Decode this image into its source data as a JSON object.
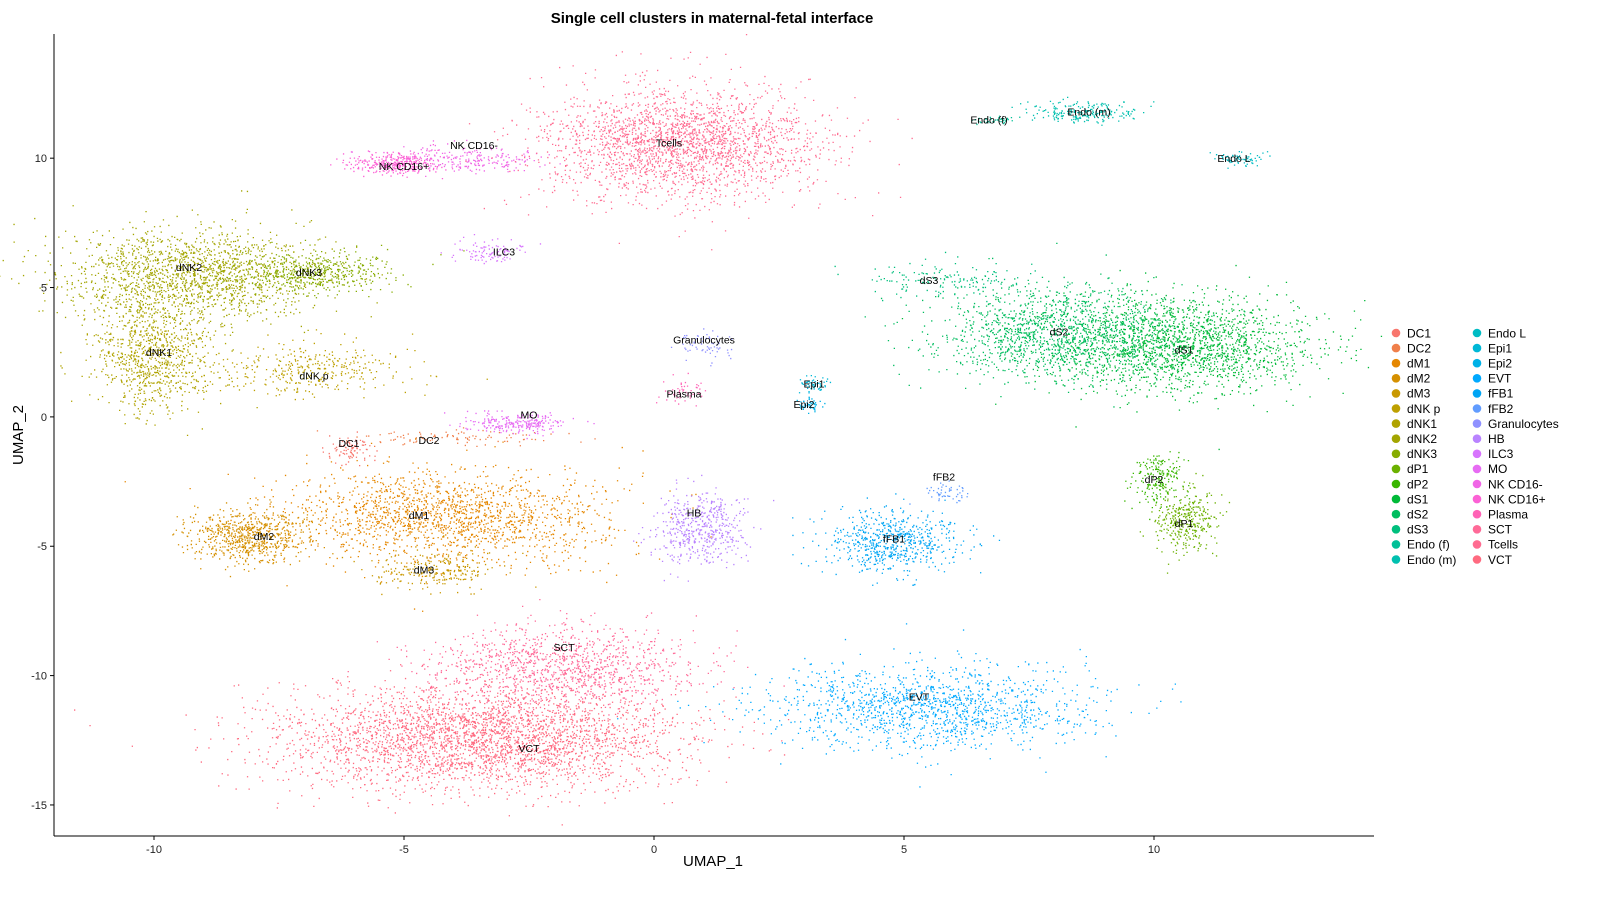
{
  "chart_data": {
    "type": "scatter",
    "title": "Single cell clusters in maternal-fetal interface",
    "xlabel": "UMAP_1",
    "ylabel": "UMAP_2",
    "xlim": [
      -12,
      14.4
    ],
    "ylim": [
      -16.2,
      14.8
    ],
    "xticks": [
      -10,
      -5,
      0,
      5,
      10
    ],
    "yticks": [
      -15,
      -10,
      -5,
      0,
      5,
      10
    ],
    "grid": false,
    "legend_position": "right",
    "legend_columns": 2,
    "clusters": [
      {
        "name": "DC1",
        "color": "#F8766D",
        "center": [
          -6.1,
          -1.3
        ],
        "sx": 0.25,
        "sy": 0.3,
        "n": 90
      },
      {
        "name": "DC2",
        "color": "#F07F4A",
        "center": [
          -3.8,
          -0.8
        ],
        "sx": 1.0,
        "sy": 0.15,
        "n": 100
      },
      {
        "name": "dM1",
        "color": "#E58700",
        "center": [
          -4.2,
          -3.8
        ],
        "sx": 1.6,
        "sy": 0.9,
        "n": 1700
      },
      {
        "name": "dM2",
        "color": "#D59000",
        "center": [
          -8.1,
          -4.6
        ],
        "sx": 0.6,
        "sy": 0.5,
        "n": 700
      },
      {
        "name": "dM3",
        "color": "#C99800",
        "center": [
          -4.4,
          -5.9
        ],
        "sx": 0.6,
        "sy": 0.35,
        "n": 250
      },
      {
        "name": "dNK p",
        "color": "#BEA000",
        "center": [
          -6.9,
          1.8
        ],
        "sx": 0.9,
        "sy": 0.5,
        "n": 350
      },
      {
        "name": "dNK1",
        "color": "#B0A300",
        "center": [
          -10.0,
          2.4
        ],
        "sx": 0.6,
        "sy": 1.1,
        "n": 900
      },
      {
        "name": "dNK2",
        "color": "#A3A500",
        "center": [
          -9.3,
          5.5
        ],
        "sx": 1.3,
        "sy": 0.9,
        "n": 1700
      },
      {
        "name": "dNK3",
        "color": "#86AC00",
        "center": [
          -6.9,
          5.6
        ],
        "sx": 0.8,
        "sy": 0.4,
        "n": 500
      },
      {
        "name": "dP1",
        "color": "#6BB100",
        "center": [
          10.6,
          -4.0
        ],
        "sx": 0.3,
        "sy": 0.6,
        "n": 350
      },
      {
        "name": "dP2",
        "color": "#39B600",
        "center": [
          10.1,
          -2.4
        ],
        "sx": 0.25,
        "sy": 0.5,
        "n": 200
      },
      {
        "name": "dS1",
        "color": "#00BA38",
        "center": [
          10.5,
          2.8
        ],
        "sx": 1.3,
        "sy": 0.9,
        "n": 1900
      },
      {
        "name": "dS2",
        "color": "#00BD5F",
        "center": [
          8.0,
          3.3
        ],
        "sx": 1.2,
        "sy": 0.9,
        "n": 1400
      },
      {
        "name": "dS3",
        "color": "#00BF7D",
        "center": [
          5.8,
          5.3
        ],
        "sx": 0.8,
        "sy": 0.35,
        "n": 150
      },
      {
        "name": "Endo (f)",
        "color": "#00C097",
        "center": [
          6.8,
          11.5
        ],
        "sx": 0.25,
        "sy": 0.08,
        "n": 40
      },
      {
        "name": "Endo (m)",
        "color": "#00C0AF",
        "center": [
          8.6,
          11.8
        ],
        "sx": 0.5,
        "sy": 0.2,
        "n": 220
      },
      {
        "name": "Endo L",
        "color": "#00BCC4",
        "center": [
          11.7,
          10.0
        ],
        "sx": 0.25,
        "sy": 0.15,
        "n": 70
      },
      {
        "name": "Epi1",
        "color": "#00B8D7",
        "center": [
          3.2,
          1.3
        ],
        "sx": 0.15,
        "sy": 0.15,
        "n": 50
      },
      {
        "name": "Epi2",
        "color": "#00B1E7",
        "center": [
          3.1,
          0.5
        ],
        "sx": 0.15,
        "sy": 0.15,
        "n": 50
      },
      {
        "name": "EVT",
        "color": "#00A9FF",
        "center": [
          5.5,
          -11.2
        ],
        "sx": 1.6,
        "sy": 0.8,
        "n": 1400
      },
      {
        "name": "fFB1",
        "color": "#00A5F4",
        "center": [
          4.8,
          -4.8
        ],
        "sx": 0.7,
        "sy": 0.6,
        "n": 650
      },
      {
        "name": "fFB2",
        "color": "#619CFF",
        "center": [
          5.8,
          -2.9
        ],
        "sx": 0.25,
        "sy": 0.2,
        "n": 50
      },
      {
        "name": "Granulocytes",
        "color": "#8F91FF",
        "center": [
          1.0,
          2.8
        ],
        "sx": 0.25,
        "sy": 0.3,
        "n": 60
      },
      {
        "name": "HB",
        "color": "#B983FF",
        "center": [
          0.9,
          -4.3
        ],
        "sx": 0.5,
        "sy": 0.7,
        "n": 500
      },
      {
        "name": "ILC3",
        "color": "#D774FD",
        "center": [
          -3.3,
          6.4
        ],
        "sx": 0.35,
        "sy": 0.25,
        "n": 100
      },
      {
        "name": "MO",
        "color": "#E76BF3",
        "center": [
          -2.7,
          -0.2
        ],
        "sx": 0.5,
        "sy": 0.2,
        "n": 250
      },
      {
        "name": "NK CD16-",
        "color": "#F066E6",
        "center": [
          -3.7,
          10.0
        ],
        "sx": 0.8,
        "sy": 0.25,
        "n": 220
      },
      {
        "name": "NK CD16+",
        "color": "#FC61D5",
        "center": [
          -5.2,
          9.8
        ],
        "sx": 0.45,
        "sy": 0.2,
        "n": 350
      },
      {
        "name": "Plasma",
        "color": "#FF63B6",
        "center": [
          0.6,
          1.0
        ],
        "sx": 0.25,
        "sy": 0.3,
        "n": 50
      },
      {
        "name": "SCT",
        "color": "#FF6A98",
        "center": [
          -1.8,
          -9.7
        ],
        "sx": 1.3,
        "sy": 0.8,
        "n": 1200
      },
      {
        "name": "Tcells",
        "color": "#FF6C91",
        "center": [
          0.5,
          10.6
        ],
        "sx": 1.4,
        "sy": 1.1,
        "n": 2400
      },
      {
        "name": "VCT",
        "color": "#FF6A80",
        "center": [
          -3.5,
          -12.4
        ],
        "sx": 2.0,
        "sy": 1.0,
        "n": 3300
      }
    ],
    "annotations": [
      {
        "text": "NK CD16-",
        "x": -3.6,
        "y": 10.5
      },
      {
        "text": "NK CD16+",
        "x": -5.0,
        "y": 9.7
      },
      {
        "text": "Tcells",
        "x": 0.3,
        "y": 10.6
      },
      {
        "text": "ILC3",
        "x": -3.0,
        "y": 6.4
      },
      {
        "text": "dNK2",
        "x": -9.3,
        "y": 5.8
      },
      {
        "text": "dNK3",
        "x": -6.9,
        "y": 5.6
      },
      {
        "text": "dNK1",
        "x": -9.9,
        "y": 2.5
      },
      {
        "text": "dNK p",
        "x": -6.8,
        "y": 1.6
      },
      {
        "text": "Granulocytes",
        "x": 1.0,
        "y": 3.0
      },
      {
        "text": "Plasma",
        "x": 0.6,
        "y": 0.9
      },
      {
        "text": "Epi1",
        "x": 3.2,
        "y": 1.3
      },
      {
        "text": "Epi2",
        "x": 3.0,
        "y": 0.5
      },
      {
        "text": "MO",
        "x": -2.5,
        "y": 0.1
      },
      {
        "text": "DC1",
        "x": -6.1,
        "y": -1.0
      },
      {
        "text": "DC2",
        "x": -4.5,
        "y": -0.9
      },
      {
        "text": "dM1",
        "x": -4.7,
        "y": -3.8
      },
      {
        "text": "dM2",
        "x": -7.8,
        "y": -4.6
      },
      {
        "text": "dM3",
        "x": -4.6,
        "y": -5.9
      },
      {
        "text": "HB",
        "x": 0.8,
        "y": -3.7
      },
      {
        "text": "fFB2",
        "x": 5.8,
        "y": -2.3
      },
      {
        "text": "fFB1",
        "x": 4.8,
        "y": -4.7
      },
      {
        "text": "dS3",
        "x": 5.5,
        "y": 5.3
      },
      {
        "text": "dS2",
        "x": 8.1,
        "y": 3.3
      },
      {
        "text": "dS1",
        "x": 10.6,
        "y": 2.6
      },
      {
        "text": "dP2",
        "x": 10.0,
        "y": -2.4
      },
      {
        "text": "dP1",
        "x": 10.6,
        "y": -4.1
      },
      {
        "text": "Endo (f)",
        "x": 6.7,
        "y": 11.5
      },
      {
        "text": "Endo (m)",
        "x": 8.7,
        "y": 11.8
      },
      {
        "text": "Endo L",
        "x": 11.6,
        "y": 10.0
      },
      {
        "text": "SCT",
        "x": -1.8,
        "y": -8.9
      },
      {
        "text": "VCT",
        "x": -2.5,
        "y": -12.8
      },
      {
        "text": "EVT",
        "x": 5.3,
        "y": -10.8
      }
    ]
  }
}
